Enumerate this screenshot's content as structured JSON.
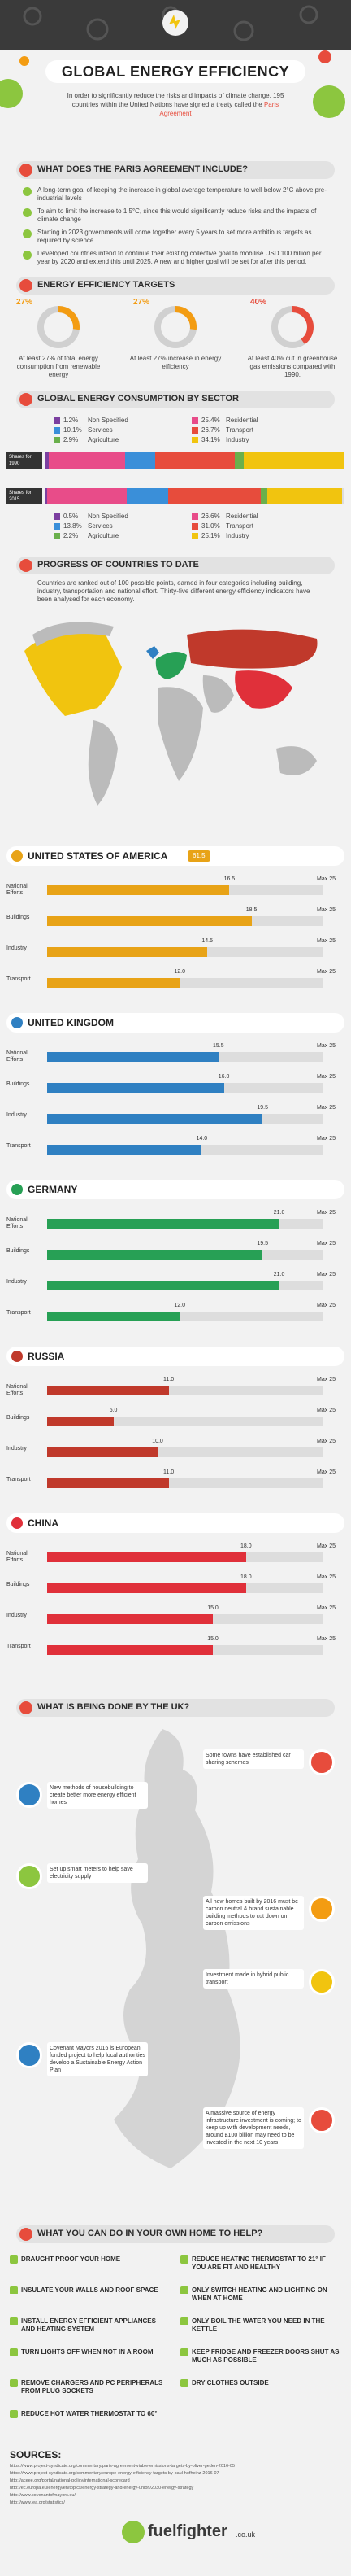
{
  "header": {
    "title": "GLOBAL ENERGY EFFICIENCY",
    "intro": "In order to significantly reduce the risks and impacts of climate change, 195 countries within the United Nations have signed a treaty called the",
    "intro_link": "Paris Agreement"
  },
  "paris": {
    "heading": "WHAT DOES THE PARIS AGREEMENT INCLUDE?",
    "points": [
      "A long-term goal of keeping the increase in global average temperature to well below 2°C above pre-industrial levels",
      "To aim to limit the increase to 1.5°C, since this would significantly reduce risks and the impacts of climate change",
      "Starting in 2023 governments will come together every 5 years to set more ambitious targets as required by science",
      "Developed countries intend to continue their existing collective goal to mobilise USD 100 billion per year by 2020 and extend this until 2025. A new and higher goal will be set for after this period."
    ]
  },
  "targets": {
    "heading": "ENERGY EFFICIENCY TARGETS",
    "items": [
      {
        "value": 27,
        "label": "27%",
        "text": "At least 27% of total energy consumption from renewable energy",
        "color": "#f39c12"
      },
      {
        "value": 27,
        "label": "27%",
        "text": "At least 27% increase in energy efficiency",
        "color": "#f39c12"
      },
      {
        "value": 40,
        "label": "40%",
        "text": "At least 40% cut in greenhouse gas emissions compared with 1990.",
        "color": "#e74c3c"
      }
    ]
  },
  "sectors": {
    "heading": "GLOBAL ENERGY CONSUMPTION BY SECTOR",
    "periods": [
      {
        "name": "Shares for 1990",
        "shares": [
          {
            "name": "Non Specified",
            "value": 1.2,
            "label": "1.2%",
            "color": "#7b3fa0"
          },
          {
            "name": "Residential",
            "value": 25.4,
            "label": "25.4%",
            "color": "#e84c89"
          },
          {
            "name": "Services",
            "value": 10.1,
            "label": "10.1%",
            "color": "#3a8fd9"
          },
          {
            "name": "Transport",
            "value": 26.7,
            "label": "26.7%",
            "color": "#e74c3c"
          },
          {
            "name": "Agriculture",
            "value": 2.9,
            "label": "2.9%",
            "color": "#6ab04c"
          },
          {
            "name": "Industry",
            "value": 34.1,
            "label": "34.1%",
            "color": "#f1c40f"
          }
        ]
      },
      {
        "name": "Shares for 2015",
        "shares": [
          {
            "name": "Non Specified",
            "value": 0.5,
            "label": "0.5%",
            "color": "#7b3fa0"
          },
          {
            "name": "Residential",
            "value": 26.6,
            "label": "26.6%",
            "color": "#e84c89"
          },
          {
            "name": "Services",
            "value": 13.8,
            "label": "13.8%",
            "color": "#3a8fd9"
          },
          {
            "name": "Transport",
            "value": 31.0,
            "label": "31.0%",
            "color": "#e74c3c"
          },
          {
            "name": "Agriculture",
            "value": 2.2,
            "label": "2.2%",
            "color": "#6ab04c"
          },
          {
            "name": "Industry",
            "value": 25.1,
            "label": "25.1%",
            "color": "#f1c40f"
          }
        ]
      }
    ]
  },
  "progress": {
    "heading": "PROGRESS OF COUNTRIES TO DATE",
    "text": "Countries are ranked out of 100 possible points, earned in four categories including building, industry, transportation and national effort. Thirty-five different energy efficiency indicators have been analysed for each economy."
  },
  "countries": [
    {
      "name": "UNITED STATES OF AMERICA",
      "score": 61.5,
      "color": "#e8a317",
      "max_prefix": "Max",
      "max": 25,
      "categories": [
        "National Efforts",
        "Buildings",
        "Industry",
        "Transport"
      ],
      "values": [
        16.5,
        18.5,
        14.5,
        12.0
      ],
      "value_labels": [
        "16.5",
        "18.5",
        "14.5",
        "12.0"
      ]
    },
    {
      "name": "UNITED KINGDOM",
      "color": "#2f80c2",
      "max_prefix": "Max",
      "max": 25,
      "categories": [
        "National Efforts",
        "Buildings",
        "Industry",
        "Transport"
      ],
      "values": [
        15.5,
        16.0,
        19.5,
        14.0
      ],
      "value_labels": [
        "15.5",
        "16.0",
        "19.5",
        "14.0"
      ]
    },
    {
      "name": "GERMANY",
      "color": "#27a055",
      "max_prefix": "Max",
      "max": 25,
      "categories": [
        "National Efforts",
        "Buildings",
        "Industry",
        "Transport"
      ],
      "values": [
        21.0,
        19.5,
        21.0,
        12.0
      ],
      "value_labels": [
        "21.0",
        "19.5",
        "21.0",
        "12.0"
      ]
    },
    {
      "name": "RUSSIA",
      "color": "#c0392b",
      "max_prefix": "Max",
      "max": 25,
      "categories": [
        "National Efforts",
        "Buildings",
        "Industry",
        "Transport"
      ],
      "values": [
        11.0,
        6.0,
        10.0,
        11.0
      ],
      "value_labels": [
        "11.0",
        "6.0",
        "10.0",
        "11.0"
      ]
    },
    {
      "name": "CHINA",
      "color": "#e0303a",
      "max_prefix": "Max",
      "max": 25,
      "categories": [
        "National Efforts",
        "Buildings",
        "Industry",
        "Transport"
      ],
      "values": [
        18.0,
        18.0,
        15.0,
        15.0
      ],
      "value_labels": [
        "18.0",
        "18.0",
        "15.0",
        "15.0"
      ]
    }
  ],
  "uk": {
    "heading": "WHAT IS BEING DONE BY THE UK?",
    "items": [
      "Some towns have established car sharing schemes",
      "New methods of housebuilding to create better more energy efficient homes",
      "Set up smart meters to help save electricity supply",
      "All new homes built by 2016 must be carbon neutral & brand sustainable building methods to cut down on carbon emissions",
      "Investment made in hybrid public transport",
      "Covenant Mayors 2016 is European funded project to help local authorities develop a Sustainable Energy Action Plan",
      "A massive source of energy infrastructure investment is coming; to keep up with development needs, around £100 billion may need to be invested in the next 10 years"
    ]
  },
  "home": {
    "heading": "WHAT YOU CAN DO IN YOUR OWN HOME TO HELP?",
    "left": [
      "DRAUGHT PROOF YOUR HOME",
      "INSULATE YOUR WALLS AND ROOF SPACE",
      "INSTALL ENERGY EFFICIENT APPLIANCES AND HEATING SYSTEM",
      "TURN LIGHTS OFF WHEN NOT IN A ROOM",
      "REMOVE CHARGERS AND PC PERIPHERALS FROM PLUG SOCKETS",
      "REDUCE HOT WATER THERMOSTAT TO 60°"
    ],
    "right": [
      "REDUCE HEATING THERMOSTAT TO 21° IF YOU ARE FIT AND HEALTHY",
      "ONLY SWITCH HEATING AND LIGHTING ON WHEN AT HOME",
      "ONLY BOIL THE WATER YOU NEED IN THE KETTLE",
      "KEEP FRIDGE AND FREEZER DOORS SHUT AS MUCH AS POSSIBLE",
      "DRY CLOTHES OUTSIDE"
    ]
  },
  "sources": {
    "heading": "SOURCES:",
    "links": [
      "https://www.project-syndicate.org/commentary/paris-agreement-viable-emissions-targets-by-oliver-geden-2016-05",
      "https://www.project-syndicate.org/commentary/europe-energy-efficiency-targets-by-paul-hofheinz-2016-07",
      "http://aceee.org/portal/national-policy/international-scorecard",
      "http://ec.europa.eu/energy/en/topics/energy-strategy-and-energy-union/2030-energy-strategy",
      "http://www.covenantofmayors.eu/",
      "http://www.iea.org/statistics/"
    ]
  },
  "footer": {
    "brand": "fuelfighter",
    "domain": ".co.uk"
  }
}
